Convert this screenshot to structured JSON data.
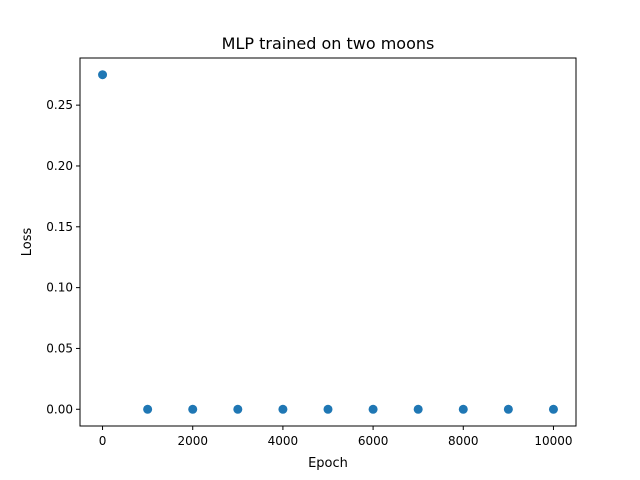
{
  "chart_data": {
    "type": "scatter",
    "title": "MLP trained on two moons",
    "xlabel": "Epoch",
    "ylabel": "Loss",
    "xlim": [
      -500,
      10500
    ],
    "ylim": [
      -0.01375,
      0.28875
    ],
    "x_ticks": [
      0,
      2000,
      4000,
      6000,
      8000,
      10000
    ],
    "x_tick_labels": [
      "0",
      "2000",
      "4000",
      "6000",
      "8000",
      "10000"
    ],
    "y_ticks": [
      0.0,
      0.05,
      0.1,
      0.15,
      0.2,
      0.25
    ],
    "y_tick_labels": [
      "0.00",
      "0.05",
      "0.10",
      "0.15",
      "0.20",
      "0.25"
    ],
    "grid": false,
    "series": [
      {
        "x": [
          0,
          1000,
          2000,
          3000,
          4000,
          5000,
          6000,
          7000,
          8000,
          9000,
          10000
        ],
        "y": [
          0.275,
          0.0,
          0.0,
          0.0,
          0.0,
          0.0,
          0.0,
          0.0,
          0.0,
          0.0,
          0.0
        ],
        "color": "#1f77b4"
      }
    ]
  }
}
